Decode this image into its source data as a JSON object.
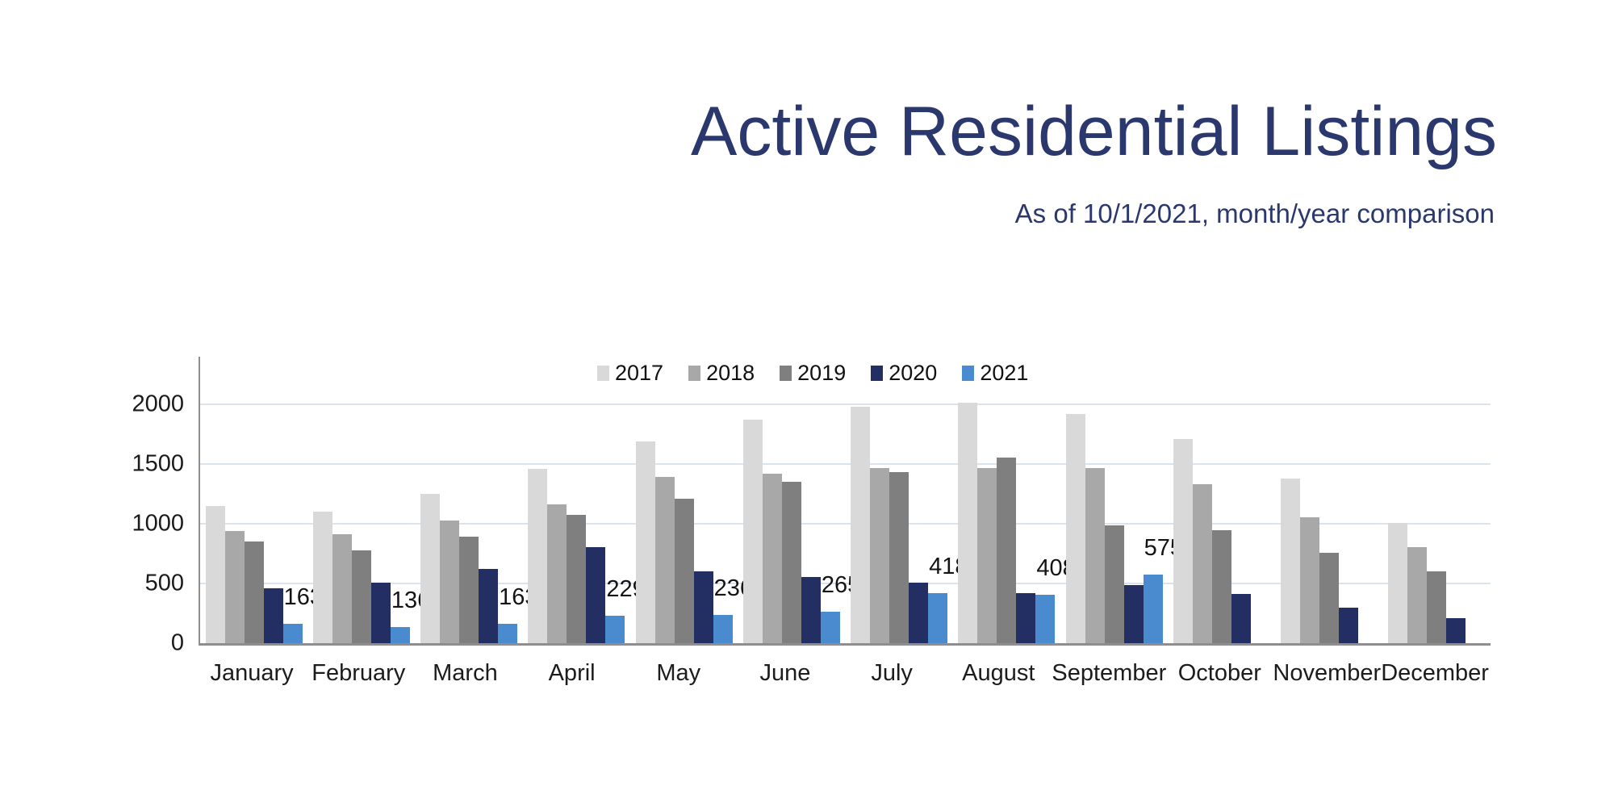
{
  "page": {
    "background": "#ffffff"
  },
  "header": {
    "title": "Active Residential Listings",
    "subtitle": "As of 10/1/2021, month/year comparison",
    "title_color": "#2b386d"
  },
  "chart_data": {
    "type": "bar",
    "title": "Active Residential Listings",
    "subtitle": "As of 10/1/2021, month/year comparison",
    "categories": [
      "January",
      "February",
      "March",
      "April",
      "May",
      "June",
      "July",
      "August",
      "September",
      "October",
      "November",
      "December"
    ],
    "series": [
      {
        "name": "2017",
        "color": "#d9d9d9",
        "values": [
          1150,
          1100,
          1250,
          1460,
          1690,
          1870,
          1980,
          2015,
          1920,
          1710,
          1380,
          1005
        ]
      },
      {
        "name": "2018",
        "color": "#a8a8a8",
        "values": [
          940,
          910,
          1030,
          1160,
          1390,
          1420,
          1465,
          1465,
          1465,
          1330,
          1055,
          805
        ]
      },
      {
        "name": "2019",
        "color": "#7f7f7f",
        "values": [
          850,
          780,
          890,
          1075,
          1210,
          1350,
          1435,
          1555,
          985,
          945,
          755,
          600
        ]
      },
      {
        "name": "2020",
        "color": "#232e62",
        "values": [
          460,
          510,
          620,
          805,
          600,
          555,
          505,
          420,
          485,
          415,
          300,
          210
        ]
      },
      {
        "name": "2021",
        "color": "#4a8bd0",
        "values": [
          163,
          136,
          163,
          229,
          236,
          265,
          418,
          408,
          575,
          null,
          null,
          null
        ],
        "data_labels": true
      }
    ],
    "data_label_values": [
      "163",
      "136",
      "163",
      "229",
      "236",
      "265",
      "418",
      "408",
      "575"
    ],
    "xlabel": "",
    "ylabel": "",
    "ylim": [
      0,
      2400
    ],
    "yticks": [
      0,
      500,
      1000,
      1500,
      2000
    ],
    "grid": true,
    "legend_position": "top-inside",
    "gridline_color": "#d9e4ec",
    "axis_color": "#8e8e8e",
    "tick_label_color": "#1a1a1a"
  }
}
